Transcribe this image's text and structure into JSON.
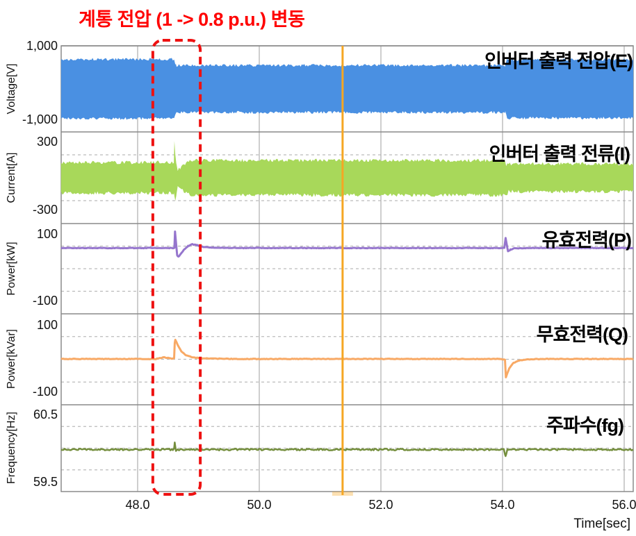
{
  "chart_data": {
    "type": "line",
    "title": "계통 전압 (1 -> 0.8 p.u.) 변동",
    "title_color": "#ff0000",
    "x": {
      "label": "Time[sec]",
      "range": [
        46.74,
        56.15
      ],
      "ticks": [
        {
          "t": 48.0,
          "label": "48.0"
        },
        {
          "t": 50.0,
          "label": "50.0"
        },
        {
          "t": 52.0,
          "label": "52.0"
        },
        {
          "t": 54.0,
          "label": "54.0"
        },
        {
          "t": 56.0,
          "label": "56.0"
        }
      ]
    },
    "panels": [
      {
        "ylabel": "Voltage[V]",
        "series_label": "인버터 출력 전압(E)",
        "yticks": [
          [
            1000,
            "1,000"
          ],
          [
            -1000,
            "-1,000"
          ]
        ],
        "series": {
          "name": "inverter-output-voltage",
          "style": "band",
          "color": "#4a90e2",
          "points": [
            [
              46.74,
              700
            ],
            [
              48.6,
              700
            ],
            [
              48.63,
              556
            ],
            [
              54.045,
              556
            ],
            [
              54.075,
              690
            ],
            [
              56.15,
              690
            ]
          ]
        }
      },
      {
        "ylabel": "Current[A]",
        "series_label": "인버터 출력 전류(I)",
        "yticks": [
          [
            300,
            "300"
          ],
          [
            -300,
            "-300"
          ]
        ],
        "series": {
          "name": "inverter-output-current",
          "style": "band2",
          "color": "#a8d85a",
          "points": [
            [
              46.74,
              132,
              -132
            ],
            [
              48.575,
              132,
              -132
            ],
            [
              48.595,
              140,
              -136
            ],
            [
              48.605,
              312,
              -150
            ],
            [
              48.62,
              200,
              -205
            ],
            [
              48.635,
              120,
              -150
            ],
            [
              48.66,
              66,
              -80
            ],
            [
              48.7,
              85,
              -95
            ],
            [
              48.78,
              125,
              -125
            ],
            [
              48.88,
              152,
              -148
            ],
            [
              49.0,
              150,
              -150
            ],
            [
              54.0,
              150,
              -150
            ],
            [
              54.04,
              140,
              -140
            ],
            [
              54.06,
              90,
              -160
            ],
            [
              54.1,
              130,
              -110
            ],
            [
              54.16,
              112,
              -118
            ],
            [
              54.3,
              120,
              -120
            ],
            [
              56.15,
              120,
              -120
            ]
          ]
        }
      },
      {
        "ylabel": "Power[kW]",
        "series_label": "유효전력(P)",
        "yticks": [
          [
            100,
            "100"
          ],
          [
            -100,
            "-100"
          ]
        ],
        "series": {
          "name": "active-power",
          "style": "line",
          "color": "#9575cd",
          "points": [
            [
              46.74,
              60
            ],
            [
              48.59,
              60
            ],
            [
              48.605,
              61
            ],
            [
              48.615,
              110
            ],
            [
              48.632,
              75
            ],
            [
              48.65,
              38
            ],
            [
              48.67,
              34
            ],
            [
              48.7,
              40
            ],
            [
              48.76,
              55
            ],
            [
              48.83,
              66
            ],
            [
              48.9,
              71
            ],
            [
              48.97,
              69
            ],
            [
              49.05,
              64
            ],
            [
              49.2,
              61
            ],
            [
              49.5,
              60
            ],
            [
              54.03,
              60
            ],
            [
              54.05,
              90
            ],
            [
              54.07,
              70
            ],
            [
              54.09,
              50
            ],
            [
              54.13,
              55
            ],
            [
              54.2,
              59
            ],
            [
              54.4,
              60
            ],
            [
              56.15,
              60
            ]
          ]
        }
      },
      {
        "ylabel": "Power[kVar]",
        "series_label": "무효전력(Q)",
        "yticks": [
          [
            100,
            "100"
          ],
          [
            -100,
            "-100"
          ]
        ],
        "series": {
          "name": "reactive-power",
          "style": "line",
          "color": "#f8a965",
          "points": [
            [
              46.74,
              0
            ],
            [
              48.3,
              0
            ],
            [
              48.42,
              5
            ],
            [
              48.5,
              3
            ],
            [
              48.57,
              1
            ],
            [
              48.6,
              2
            ],
            [
              48.61,
              48
            ],
            [
              48.62,
              58
            ],
            [
              48.64,
              50
            ],
            [
              48.68,
              34
            ],
            [
              48.73,
              20
            ],
            [
              48.8,
              11
            ],
            [
              48.9,
              5
            ],
            [
              49.05,
              2
            ],
            [
              49.3,
              1
            ],
            [
              49.6,
              0
            ],
            [
              53.95,
              0
            ],
            [
              54.04,
              -2
            ],
            [
              54.055,
              -55
            ],
            [
              54.07,
              -48
            ],
            [
              54.11,
              -28
            ],
            [
              54.17,
              -13
            ],
            [
              54.26,
              -5
            ],
            [
              54.45,
              -1
            ],
            [
              54.7,
              0
            ],
            [
              56.15,
              0
            ]
          ]
        }
      },
      {
        "ylabel": "Frequency[Hz]",
        "series_label": "주파수(fg)",
        "yticks": [
          [
            60.5,
            "60.5"
          ],
          [
            59.5,
            "59.5"
          ]
        ],
        "series": {
          "name": "grid-frequency",
          "style": "line",
          "color": "#748e3d",
          "points": [
            [
              46.74,
              59.995
            ],
            [
              48.58,
              59.995
            ],
            [
              48.6,
              60.0
            ],
            [
              48.61,
              60.09
            ],
            [
              48.63,
              59.985
            ],
            [
              48.66,
              59.995
            ],
            [
              49.0,
              59.995
            ],
            [
              54.02,
              59.995
            ],
            [
              54.05,
              59.9
            ],
            [
              54.08,
              59.99
            ],
            [
              54.12,
              59.995
            ],
            [
              56.15,
              59.995
            ]
          ]
        }
      }
    ],
    "annotations": {
      "event_box": {
        "t_start": 48.25,
        "t_end": 49.03,
        "color": "#ee1111"
      },
      "cursor": {
        "t": 51.37,
        "color": "#f5a623"
      },
      "grid_voltage_step": {
        "from_pu": 1.0,
        "to_pu": 0.8,
        "t_sag": 48.6,
        "t_recovery": 54.05
      }
    }
  }
}
